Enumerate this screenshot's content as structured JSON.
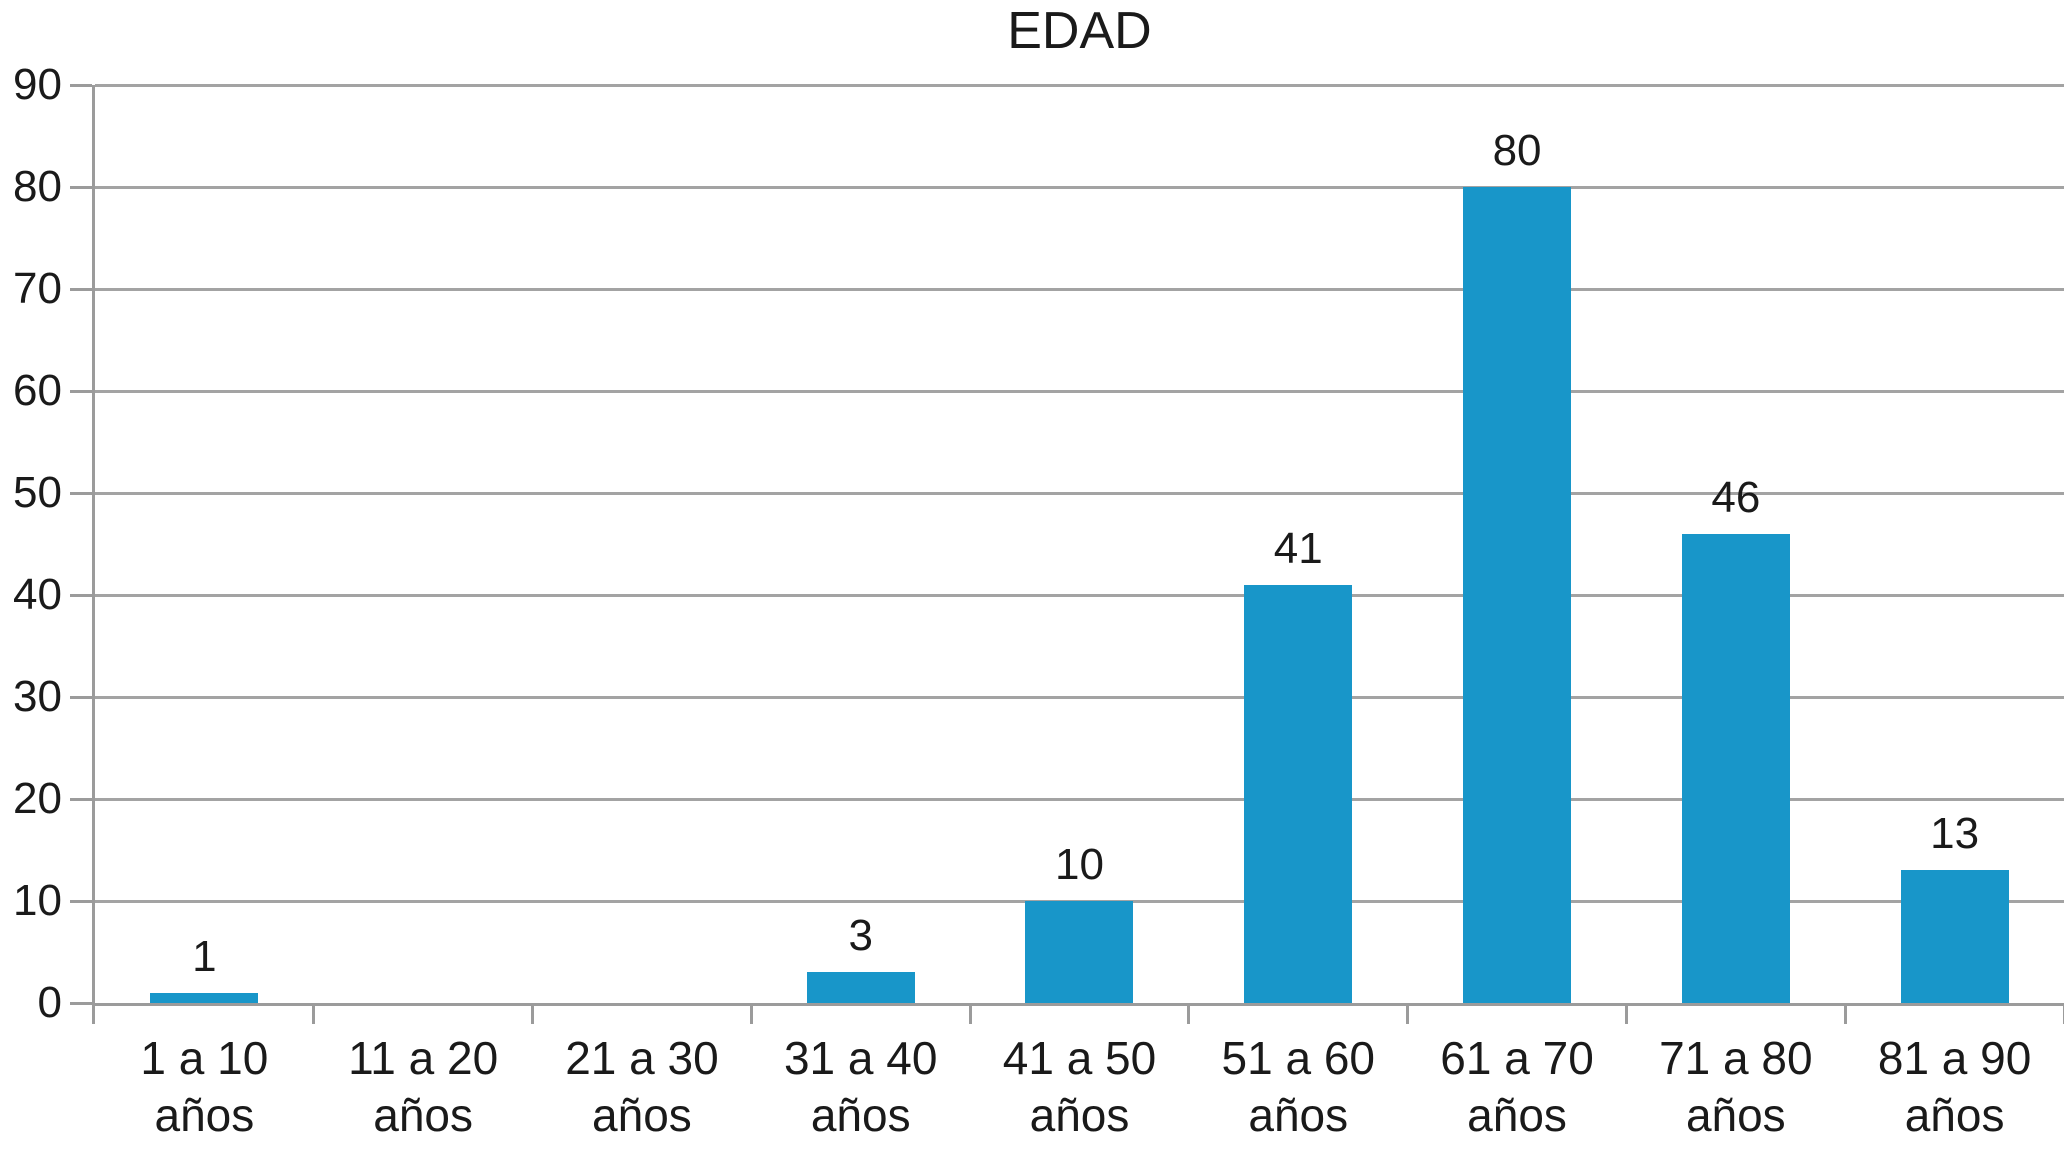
{
  "chart_data": {
    "type": "bar",
    "title": "EDAD",
    "categories": [
      "1 a 10 años",
      "11 a 20 años",
      "21 a 30 años",
      "31 a 40 años",
      "41 a 50 años",
      "51 a 60 años",
      "61 a 70 años",
      "71 a 80 años",
      "81 a 90 años"
    ],
    "values": [
      1,
      0,
      0,
      3,
      10,
      41,
      80,
      46,
      13
    ],
    "data_labels": [
      "1",
      "",
      "",
      "3",
      "10",
      "41",
      "80",
      "46",
      "13"
    ],
    "xlabel": "",
    "ylabel": "",
    "ylim": [
      0,
      90
    ],
    "yticks": [
      0,
      10,
      20,
      30,
      40,
      50,
      60,
      70,
      80,
      90
    ],
    "grid": true,
    "legend": false,
    "colors": {
      "bar": "#1896C9",
      "gridline": "#A3A3A3",
      "axis": "#9B9B9B",
      "text": "#1A1A1A",
      "background": "#FFFFFF"
    }
  }
}
